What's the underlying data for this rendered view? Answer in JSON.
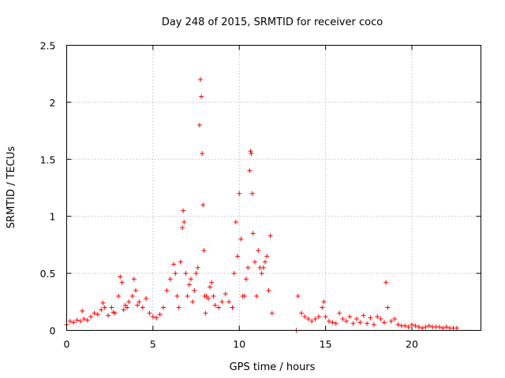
{
  "chart_data": {
    "type": "scatter",
    "title": "Day 248 of 2015, SRMTID for receiver coco",
    "xlabel": "GPS time / hours",
    "ylabel": "SRMTID / TECUs",
    "xlim": [
      0,
      24
    ],
    "ylim": [
      0,
      2.5
    ],
    "xticks": [
      0,
      5,
      10,
      15,
      20
    ],
    "xtick_labels": [
      "0",
      "5",
      "10",
      "15",
      "20"
    ],
    "yticks": [
      0,
      0.5,
      1,
      1.5,
      2,
      2.5
    ],
    "ytick_labels": [
      "0",
      "0.5",
      "1",
      "1.5",
      "2",
      "2.5"
    ],
    "grid": true,
    "marker": "plus",
    "marker_color": "#ff0000",
    "series": [
      {
        "name": "SRMTID",
        "x": [
          0.0,
          0.2,
          0.4,
          0.6,
          0.8,
          0.9,
          1.0,
          1.2,
          1.4,
          1.6,
          1.8,
          2.0,
          2.1,
          2.2,
          2.4,
          2.6,
          2.7,
          2.8,
          3.0,
          3.1,
          3.2,
          3.3,
          3.4,
          3.5,
          3.6,
          3.8,
          3.9,
          4.0,
          4.1,
          4.2,
          4.4,
          4.6,
          4.8,
          5.0,
          5.2,
          5.4,
          5.6,
          5.8,
          6.0,
          6.2,
          6.3,
          6.4,
          6.5,
          6.6,
          6.7,
          6.75,
          6.8,
          6.9,
          7.0,
          7.1,
          7.2,
          7.3,
          7.4,
          7.5,
          7.6,
          7.7,
          7.75,
          7.8,
          7.85,
          7.9,
          7.95,
          8.0,
          8.05,
          8.1,
          8.2,
          8.3,
          8.4,
          8.5,
          8.6,
          8.8,
          9.0,
          9.2,
          9.4,
          9.6,
          9.7,
          9.8,
          9.9,
          10.0,
          10.1,
          10.2,
          10.3,
          10.4,
          10.5,
          10.6,
          10.65,
          10.7,
          10.75,
          10.8,
          10.9,
          11.0,
          11.1,
          11.2,
          11.3,
          11.4,
          11.5,
          11.6,
          11.7,
          11.8,
          11.9,
          13.3,
          13.4,
          13.6,
          13.8,
          14.0,
          14.2,
          14.4,
          14.6,
          14.8,
          14.9,
          15.0,
          15.2,
          15.4,
          15.6,
          15.8,
          16.0,
          16.2,
          16.4,
          16.6,
          16.8,
          17.0,
          17.2,
          17.4,
          17.6,
          17.8,
          18.0,
          18.2,
          18.4,
          18.5,
          18.6,
          18.8,
          19.0,
          19.2,
          19.4,
          19.6,
          19.8,
          20.0,
          20.2,
          20.4,
          20.6,
          20.8,
          21.0,
          21.2,
          21.4,
          21.6,
          21.8,
          22.0,
          22.2,
          22.4,
          22.6
        ],
        "y": [
          0.05,
          0.08,
          0.07,
          0.09,
          0.08,
          0.17,
          0.1,
          0.09,
          0.12,
          0.15,
          0.14,
          0.18,
          0.24,
          0.2,
          0.13,
          0.2,
          0.16,
          0.15,
          0.3,
          0.47,
          0.42,
          0.18,
          0.22,
          0.2,
          0.25,
          0.3,
          0.45,
          0.35,
          0.22,
          0.25,
          0.2,
          0.28,
          0.15,
          0.12,
          0.11,
          0.14,
          0.2,
          0.35,
          0.45,
          0.58,
          0.5,
          0.3,
          0.2,
          0.6,
          0.9,
          1.05,
          0.95,
          0.5,
          0.3,
          0.4,
          0.45,
          0.25,
          0.35,
          0.5,
          0.55,
          1.8,
          2.2,
          2.05,
          1.55,
          1.1,
          0.7,
          0.3,
          0.15,
          0.3,
          0.28,
          0.38,
          0.42,
          0.3,
          0.22,
          0.2,
          0.25,
          0.32,
          0.25,
          0.2,
          0.5,
          0.95,
          0.65,
          1.2,
          0.8,
          0.3,
          0.3,
          0.45,
          0.55,
          1.4,
          1.57,
          1.55,
          1.2,
          0.85,
          0.6,
          0.3,
          0.7,
          0.55,
          0.5,
          0.55,
          0.6,
          0.65,
          0.35,
          0.83,
          0.15,
          0.0,
          0.3,
          0.15,
          0.12,
          0.1,
          0.08,
          0.1,
          0.12,
          0.2,
          0.25,
          0.12,
          0.08,
          0.07,
          0.06,
          0.15,
          0.1,
          0.08,
          0.12,
          0.06,
          0.1,
          0.07,
          0.13,
          0.06,
          0.11,
          0.05,
          0.12,
          0.1,
          0.07,
          0.42,
          0.2,
          0.08,
          0.1,
          0.05,
          0.04,
          0.04,
          0.03,
          0.05,
          0.04,
          0.03,
          0.02,
          0.03,
          0.04,
          0.03,
          0.03,
          0.03,
          0.02,
          0.03,
          0.02,
          0.02,
          0.02
        ]
      }
    ]
  }
}
